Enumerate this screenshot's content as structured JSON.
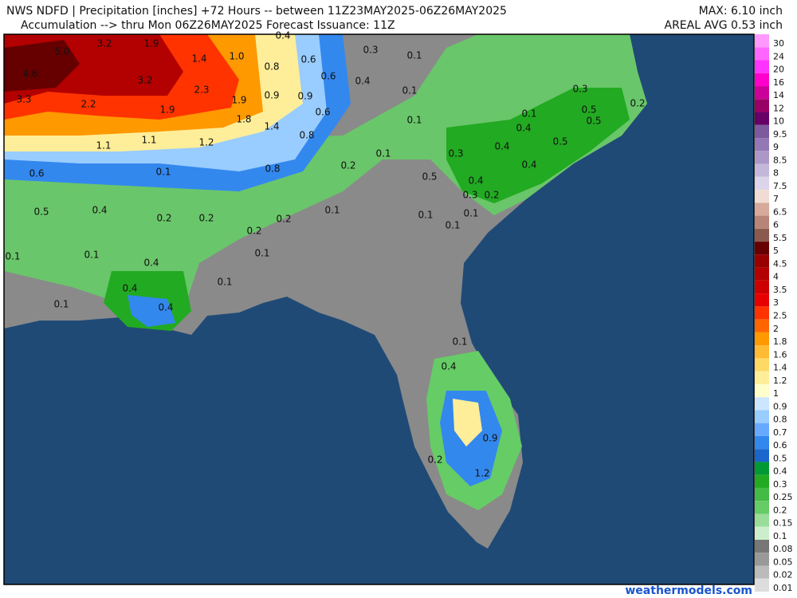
{
  "header": {
    "line1": "NWS NDFD | Precipitation [inches] +72 Hours -- between 11Z23MAY2025-06Z26MAY2025",
    "line2": "Accumulation --> thru Mon 06Z26MAY2025   Forecast Issuance: 11Z",
    "max": "MAX: 6.10 inch",
    "areal_avg": "AREAL AVG 0.53 inch"
  },
  "legend": {
    "labels": [
      "30",
      "24",
      "20",
      "16",
      "14",
      "12",
      "10",
      "9.5",
      "9",
      "8.5",
      "8",
      "7.5",
      "7",
      "6.5",
      "6",
      "5.5",
      "5",
      "4.5",
      "4",
      "3.5",
      "3",
      "2.5",
      "2",
      "1.8",
      "1.6",
      "1.4",
      "1.2",
      "1",
      "0.9",
      "0.8",
      "0.7",
      "0.6",
      "0.5",
      "0.4",
      "0.3",
      "0.25",
      "0.2",
      "0.15",
      "0.1",
      "0.08",
      "0.05",
      "0.02",
      "0.01"
    ],
    "colors": [
      "#ff99ff",
      "#ff66ff",
      "#ff33ff",
      "#ff00cc",
      "#cc0099",
      "#990066",
      "#660066",
      "#7d5a9e",
      "#9478b5",
      "#ab98c7",
      "#c3b8d9",
      "#dcd4ea",
      "#f0dcd4",
      "#d6a99a",
      "#b98478",
      "#8b5a4e",
      "#660000",
      "#990000",
      "#b30000",
      "#cc0000",
      "#e60000",
      "#ff3300",
      "#ff6600",
      "#ff9900",
      "#ffbb33",
      "#ffd966",
      "#ffee99",
      "#ffffcc",
      "#cce6ff",
      "#99ccff",
      "#66aaff",
      "#3388ee",
      "#1a66cc",
      "#009933",
      "#22aa22",
      "#44bb44",
      "#66cc66",
      "#99dd99",
      "#cceecc",
      "#777777",
      "#999999",
      "#bbbbbb",
      "#dddddd"
    ]
  },
  "map_labels": [
    "0.4",
    "3.2",
    "1.9",
    "0.3",
    "0.1",
    "5.0",
    "1.4",
    "1.0",
    "0.6",
    "4.6",
    "0.8",
    "0.6",
    "3.2",
    "0.4",
    "0.3",
    "2.3",
    "0.1",
    "3.3",
    "2.2",
    "1.9",
    "0.9",
    "0.9",
    "0.5",
    "0.2",
    "1.9",
    "0.6",
    "0.1",
    "1.8",
    "1.4",
    "0.1",
    "0.5",
    "0.4",
    "0.8",
    "1.1",
    "1.2",
    "0.5",
    "1.1",
    "0.4",
    "0.1",
    "0.3",
    "0.2",
    "0.8",
    "0.4",
    "0.6",
    "0.5",
    "0.1",
    "0.4",
    "0.3",
    "0.2",
    "0.5",
    "0.4",
    "0.1",
    "0.2",
    "0.2",
    "0.2",
    "0.1",
    "0.1",
    "0.1",
    "0.2",
    "0.1",
    "0.1",
    "0.1",
    "0.4",
    "0.1",
    "0.4",
    "0.4",
    "0.1",
    "0.1",
    "0.4",
    "0.9",
    "0.2",
    "1.2"
  ],
  "footer": "weathermodels.com"
}
